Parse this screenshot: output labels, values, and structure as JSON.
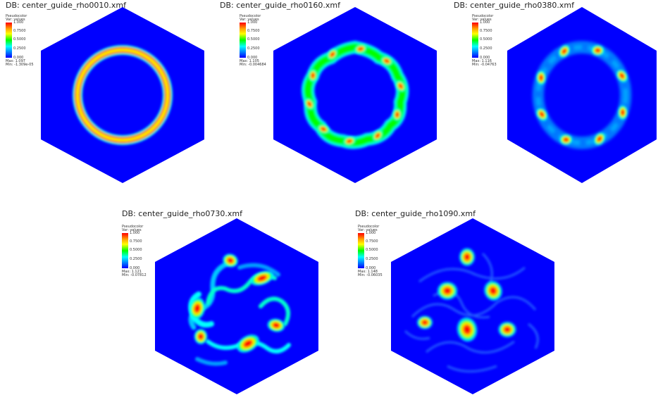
{
  "panels": [
    {
      "title": "DB: center_guide_rho0010.xmf",
      "legend": {
        "label1": "Pseudocolor",
        "label2": "Var: values",
        "ticks": [
          "1.000",
          "0.7500",
          "0.5000",
          "0.2500",
          "0.000"
        ],
        "max": "Max: 1.097",
        "min": "Min: -1.309e-05"
      },
      "pattern": "ring"
    },
    {
      "title": "DB: center_guide_rho0160.xmf",
      "legend": {
        "label1": "Pseudocolor",
        "label2": "Var: values",
        "ticks": [
          "1.000",
          "0.7500",
          "0.5000",
          "0.2500",
          "0.000"
        ],
        "max": "Max: 1.105",
        "min": "Min: -0.004684"
      },
      "pattern": "wavy-ring"
    },
    {
      "title": "DB: center_guide_rho0380.xmf",
      "legend": {
        "label1": "Pseudocolor",
        "label2": "Var: values",
        "ticks": [
          "1.000",
          "0.7500",
          "0.5000",
          "0.2500",
          "0.000"
        ],
        "max": "Max: 1.116",
        "min": "Min: -0.04763"
      },
      "pattern": "ring-vortices"
    },
    {
      "title": "DB: center_guide_rho0730.xmf",
      "legend": {
        "label1": "Pseudocolor",
        "label2": "Var: values",
        "ticks": [
          "1.000",
          "0.7500",
          "0.5000",
          "0.2500",
          "0.000"
        ],
        "max": "Max: 1.121",
        "min": "Min: -0.07812"
      },
      "pattern": "spiral-vortices"
    },
    {
      "title": "DB: center_guide_rho1090.xmf",
      "legend": {
        "label1": "Pseudocolor",
        "label2": "Var: values",
        "ticks": [
          "1.000",
          "0.7500",
          "0.5000",
          "0.2500",
          "0.000"
        ],
        "max": "Max: 1.148",
        "min": "Min: -0.06035"
      },
      "pattern": "scattered-vortices"
    }
  ],
  "colors": {
    "background": "#0000ff",
    "ring": "#ff0000",
    "mid": "#ffff00",
    "low": "#00ff00",
    "edge": "#00ffff"
  }
}
